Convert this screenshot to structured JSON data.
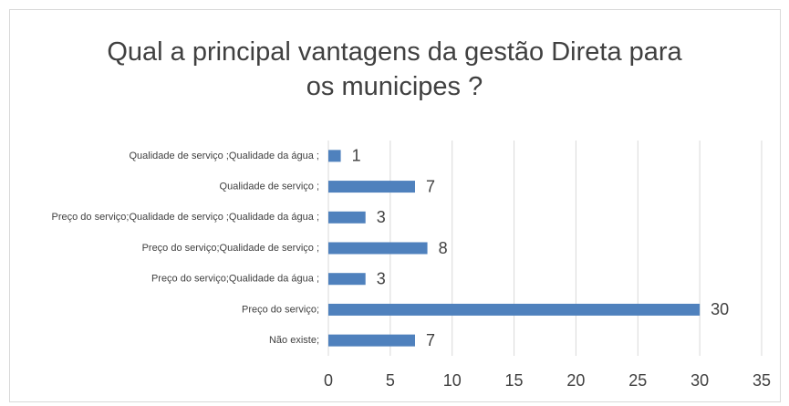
{
  "chart_data": {
    "type": "barh",
    "title": "Qual a principal vantagens da gestão Direta para os municipes ?",
    "categories": [
      "Qualidade de serviço ;Qualidade da água ;",
      "Qualidade de serviço ;",
      "Preço do serviço;Qualidade de serviço ;Qualidade da água ;",
      "Preço do serviço;Qualidade de serviço ;",
      "Preço do serviço;Qualidade da água ;",
      "Preço do serviço;",
      "Não existe;"
    ],
    "values": [
      1,
      7,
      3,
      8,
      3,
      30,
      7
    ],
    "color": "#4f81bd",
    "xlim": [
      0,
      35
    ],
    "xticks": [
      0,
      5,
      10,
      15,
      20,
      25,
      30,
      35
    ],
    "grid": true
  }
}
